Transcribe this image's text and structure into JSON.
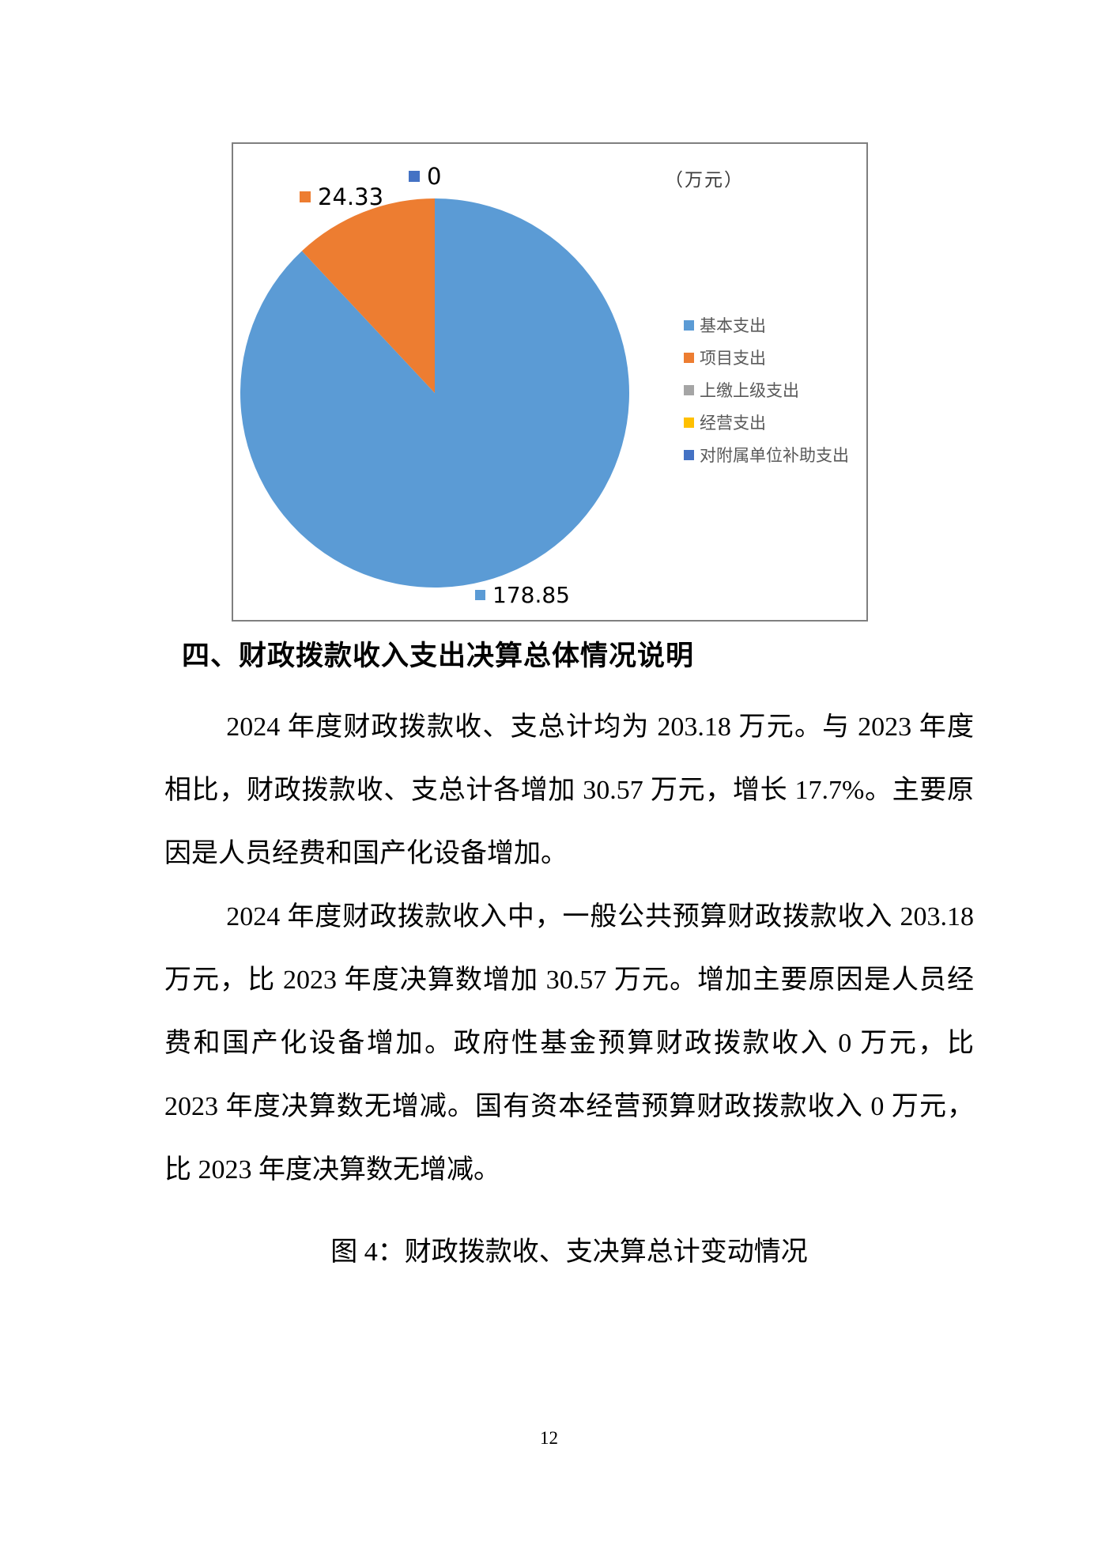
{
  "document": {
    "heading": "四、财政拨款收入支出决算总体情况说明",
    "paragraphs": {
      "p1": "2024 年度财政拨款收、支总计均为 203.18 万元。与 2023 年度相比，财政拨款收、支总计各增加 30.57 万元，增长 17.7%。主要原因是人员经费和国产化设备增加。",
      "p2": "2024 年度财政拨款收入中，一般公共预算财政拨款收入 203.18 万元，比 2023 年度决算数增加 30.57 万元。增加主要原因是人员经费和国产化设备增加。政府性基金预算财政拨款收入 0 万元，比 2023 年度决算数无增减。国有资本经营预算财政拨款收入 0 万元，比 2023 年度决算数无增减。"
    },
    "figure_caption": "图 4：财政拨款收、支决算总计变动情况",
    "page_number": "12"
  },
  "chart": {
    "unit_label": "（万元）",
    "data_labels": [
      {
        "text": "0",
        "color": "#4472C4"
      },
      {
        "text": "24.33",
        "color": "#ED7D31"
      },
      {
        "text": "178.85",
        "color": "#5B9BD5"
      }
    ],
    "legend": [
      {
        "label": "基本支出",
        "color": "#5B9BD5"
      },
      {
        "label": "项目支出",
        "color": "#ED7D31"
      },
      {
        "label": "上缴上级支出",
        "color": "#A5A5A5"
      },
      {
        "label": "经营支出",
        "color": "#FFC000"
      },
      {
        "label": "对附属单位补助支出",
        "color": "#4472C4"
      }
    ]
  },
  "chart_data": {
    "type": "pie",
    "title": "",
    "unit": "万元",
    "categories": [
      "基本支出",
      "项目支出",
      "上缴上级支出",
      "经营支出",
      "对附属单位补助支出"
    ],
    "values": [
      178.85,
      24.33,
      0,
      0,
      0
    ],
    "colors": [
      "#5B9BD5",
      "#ED7D31",
      "#A5A5A5",
      "#FFC000",
      "#4472C4"
    ],
    "start_angle_deg": 0,
    "direction": "clockwise",
    "legend_position": "right",
    "data_labels_shown": [
      "178.85",
      "24.33",
      "0"
    ]
  }
}
